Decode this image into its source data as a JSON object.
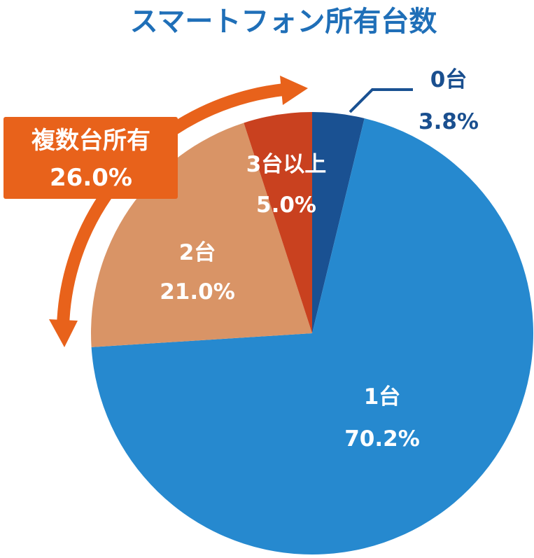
{
  "chart_data": {
    "type": "pie",
    "title": "スマートフォン所有台数",
    "start": "12 o'clock, clockwise",
    "slices": [
      {
        "category": "0台",
        "value": 3.8,
        "label": "3.8%",
        "color": "#1a5192"
      },
      {
        "category": "1台",
        "value": 70.2,
        "label": "70.2%",
        "color": "#2689cf"
      },
      {
        "category": "2台",
        "value": 21.0,
        "label": "21.0%",
        "color": "#d99466"
      },
      {
        "category": "3台以上",
        "value": 5.0,
        "label": "5.0%",
        "color": "#c9411f"
      }
    ],
    "annotation": {
      "title": "複数台所有",
      "value": "26.0%",
      "color": "#e8621b"
    }
  }
}
